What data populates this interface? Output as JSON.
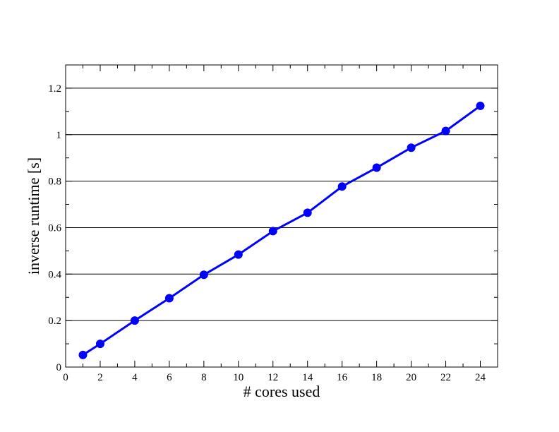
{
  "chart_data": {
    "type": "line",
    "title": "",
    "xlabel": "# cores used",
    "ylabel": "inverse runtime [s]",
    "xlim": [
      0,
      25
    ],
    "ylim": [
      0,
      1.3
    ],
    "x_ticks": [
      0,
      2,
      4,
      6,
      8,
      10,
      12,
      14,
      16,
      18,
      20,
      22,
      24
    ],
    "x_tick_labels": [
      "0",
      "2",
      "4",
      "6",
      "8",
      "10",
      "12",
      "14",
      "16",
      "18",
      "20",
      "22",
      "24"
    ],
    "y_ticks": [
      0,
      0.2,
      0.4,
      0.6,
      0.8,
      1,
      1.2
    ],
    "y_tick_labels": [
      "0",
      "0.2",
      "0.4",
      "0.6",
      "0.8",
      "1",
      "1.2"
    ],
    "grid": "horizontal",
    "series": [
      {
        "color": "#0000ff",
        "x": [
          1,
          2,
          4,
          6,
          8,
          10,
          12,
          14,
          16,
          18,
          20,
          22,
          24
        ],
        "y": [
          0.052,
          0.1,
          0.2,
          0.296,
          0.397,
          0.484,
          0.585,
          0.664,
          0.777,
          0.858,
          0.944,
          1.016,
          1.124
        ]
      }
    ]
  }
}
